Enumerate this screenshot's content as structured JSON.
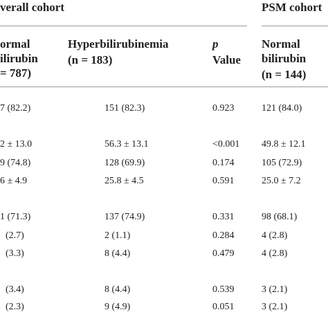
{
  "table": {
    "groups": [
      "verall cohort",
      "PSM cohort"
    ],
    "headers": [
      [
        "ormal",
        "ilirubin",
        "= 787)"
      ],
      [
        "Hyperbilirubinemia",
        "(n = 183)"
      ],
      [
        "p",
        "Value"
      ],
      [
        "Normal",
        "bilirubin",
        "(n = 144)"
      ]
    ],
    "rows": [
      [
        "7 (82.2)",
        "151 (82.3)",
        "0.923",
        "121 (84.0)"
      ],
      [
        "2 ± 13.0",
        "56.3 ± 13.1",
        "<0.001",
        "49.8 ± 12.1"
      ],
      [
        "9 (74.8)",
        "128 (69.9)",
        "0.174",
        "105 (72.9)"
      ],
      [
        "6 ± 4.9",
        "25.8 ± 4.5",
        "0.591",
        "25.0 ± 7.2"
      ],
      [
        "1 (71.3)",
        "137 (74.9)",
        "0.331",
        "98 (68.1)"
      ],
      [
        "(2.7)",
        "2 (1.1)",
        "0.284",
        "4 (2.8)"
      ],
      [
        "(3.3)",
        "8 (4.4)",
        "0.479",
        "4 (2.8)"
      ],
      [
        "(3.4)",
        "8 (4.4)",
        "0.539",
        "3 (2.1)"
      ],
      [
        "(2.3)",
        "9 (4.9)",
        "0.051",
        "3 (2.1)"
      ]
    ]
  }
}
